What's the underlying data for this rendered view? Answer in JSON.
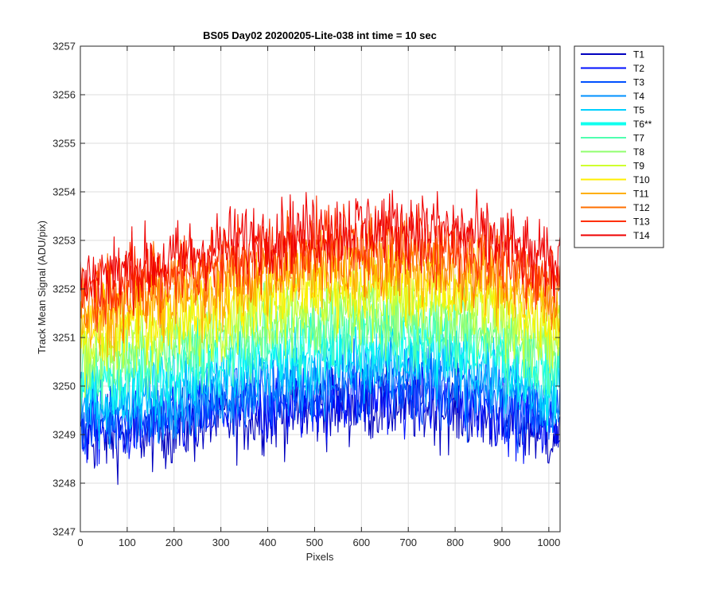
{
  "chart_data": {
    "type": "line",
    "title": "BS05 Day02 20200205-Lite-038 int time = 10 sec",
    "xlabel": "Pixels",
    "ylabel": "Track Mean Signal (ADU/pix)",
    "xlim": [
      0,
      1024
    ],
    "ylim": [
      3247,
      3257
    ],
    "x_ticks": [
      "0",
      "100",
      "200",
      "300",
      "400",
      "500",
      "600",
      "700",
      "800",
      "900",
      "1000"
    ],
    "y_ticks": [
      "3247",
      "3248",
      "3249",
      "3250",
      "3251",
      "3252",
      "3253",
      "3254",
      "3255",
      "3256",
      "3257"
    ],
    "grid": true,
    "legend_position": "outside-top-right",
    "x": [
      0,
      100,
      200,
      300,
      400,
      500,
      600,
      700,
      800,
      900,
      1000
    ],
    "series": [
      {
        "name": "T1",
        "color": "#0000bf",
        "values": [
          3248.9,
          3249.0,
          3249.1,
          3249.3,
          3249.4,
          3249.5,
          3249.6,
          3249.6,
          3249.5,
          3249.3,
          3249.0
        ]
      },
      {
        "name": "T2",
        "color": "#0010ff",
        "values": [
          3249.1,
          3249.2,
          3249.3,
          3249.5,
          3249.6,
          3249.7,
          3249.8,
          3249.8,
          3249.7,
          3249.5,
          3249.2
        ]
      },
      {
        "name": "T3",
        "color": "#0050ff",
        "values": [
          3249.3,
          3249.4,
          3249.5,
          3249.7,
          3249.8,
          3249.9,
          3250.0,
          3250.0,
          3249.9,
          3249.7,
          3249.4
        ]
      },
      {
        "name": "T4",
        "color": "#0090ff",
        "values": [
          3249.5,
          3249.6,
          3249.7,
          3249.9,
          3250.1,
          3250.2,
          3250.3,
          3250.3,
          3250.2,
          3250.0,
          3249.6
        ]
      },
      {
        "name": "T5",
        "color": "#00d0ff",
        "values": [
          3249.7,
          3249.8,
          3250.0,
          3250.2,
          3250.4,
          3250.5,
          3250.6,
          3250.6,
          3250.5,
          3250.3,
          3249.9
        ]
      },
      {
        "name": "T6**",
        "color": "#10ffef",
        "values": [
          3250.0,
          3250.1,
          3250.3,
          3250.5,
          3250.7,
          3250.8,
          3250.9,
          3250.9,
          3250.8,
          3250.6,
          3250.2
        ]
      },
      {
        "name": "T7",
        "color": "#50ffaf",
        "values": [
          3250.2,
          3250.4,
          3250.6,
          3250.8,
          3251.0,
          3251.1,
          3251.2,
          3251.2,
          3251.1,
          3250.9,
          3250.5
        ]
      },
      {
        "name": "T8",
        "color": "#90ff6f",
        "values": [
          3250.5,
          3250.7,
          3250.9,
          3251.1,
          3251.3,
          3251.4,
          3251.5,
          3251.5,
          3251.4,
          3251.2,
          3250.8
        ]
      },
      {
        "name": "T9",
        "color": "#d0ff2f",
        "values": [
          3250.8,
          3251.0,
          3251.2,
          3251.4,
          3251.6,
          3251.8,
          3251.8,
          3251.8,
          3251.7,
          3251.5,
          3251.1
        ]
      },
      {
        "name": "T10",
        "color": "#ffef00",
        "values": [
          3251.1,
          3251.3,
          3251.5,
          3251.7,
          3251.9,
          3252.1,
          3252.1,
          3252.1,
          3252.0,
          3251.8,
          3251.4
        ]
      },
      {
        "name": "T11",
        "color": "#ffaf00",
        "values": [
          3251.4,
          3251.6,
          3251.8,
          3252.0,
          3252.2,
          3252.4,
          3252.4,
          3252.4,
          3252.3,
          3252.1,
          3251.7
        ]
      },
      {
        "name": "T12",
        "color": "#ff6f00",
        "values": [
          3251.7,
          3251.9,
          3252.1,
          3252.3,
          3252.5,
          3252.7,
          3252.7,
          3252.7,
          3252.6,
          3252.4,
          3252.0
        ]
      },
      {
        "name": "T13",
        "color": "#ff2f00",
        "values": [
          3252.0,
          3252.2,
          3252.4,
          3252.6,
          3252.8,
          3253.0,
          3253.0,
          3253.0,
          3252.9,
          3252.7,
          3252.3
        ]
      },
      {
        "name": "T14",
        "color": "#ef0000",
        "values": [
          3252.2,
          3252.4,
          3252.6,
          3252.9,
          3253.1,
          3253.2,
          3253.3,
          3253.3,
          3253.2,
          3253.0,
          3252.5
        ]
      }
    ],
    "highlighted_series": "T6**"
  }
}
